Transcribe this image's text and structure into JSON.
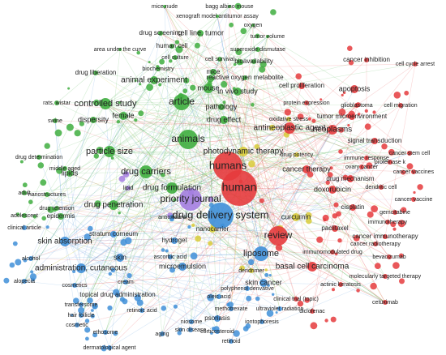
{
  "clusters": [
    {
      "color": "#3fae3f",
      "labels": [
        "mice,nude",
        "bagg albino mouse",
        "xenograft model antitumor assay",
        "oxygen",
        "drug screening",
        "cell line, tumor",
        "tumor volume",
        "area under the curve",
        "human cell",
        "superoxide dismutase",
        "cell culture",
        "cell survival",
        "bioavailability",
        "biochemistry",
        "drug liberation",
        "mice",
        "reactive oxygen metabolite",
        "animal experiment",
        "mouse",
        "in vivo study",
        "rats, wistar",
        "controlled study",
        "article",
        "pathology",
        "female",
        "dispersity",
        "swine",
        "drug effect",
        "animals",
        "particle size",
        "drug determination",
        "middle aged",
        "lipids",
        "drug carriers",
        "adult",
        "nanostructures",
        "drug formulation",
        "adolescent",
        "drug retention",
        "drug penetration",
        "epidermis"
      ]
    },
    {
      "color": "#e53b3d",
      "labels": [
        "cancer inhibition",
        "cell cycle arrest",
        "cell proliferation",
        "apoptosis",
        "protein expression",
        "glioblastoma",
        "cell migration",
        "tumor microenvironment",
        "antineoplastic agent",
        "neoplasms",
        "signal transduction",
        "cancer stem cell",
        "immune response",
        "proteinase k",
        "ovary cancer",
        "cancer vaccines",
        "humans",
        "drug mechanism",
        "dendritic cell",
        "human",
        "doxorubicin",
        "cisplatin",
        "cancer vaccine",
        "gemcitabine",
        "immunotherapy",
        "paclitaxel",
        "cancer immunotherapy",
        "review",
        "cancer radiotherapy",
        "immunomodulated drug",
        "bevacizumab",
        "basal cell carcinoma",
        "molecularly targeted therapy",
        "actinic keratosis",
        "clinical trial (topic)",
        "cetuximab",
        "diclofenac",
        "cancer therapy"
      ]
    },
    {
      "color": "#d8cc3a",
      "labels": [
        "oxidative stress",
        "photodynamic therapy",
        "drug potency",
        "curcumin",
        "nanocarrier",
        "dendrimer"
      ]
    },
    {
      "color": "#a47ee0",
      "labels": [
        "priority journal",
        "lipid"
      ]
    },
    {
      "color": "#3f8fd8",
      "labels": [
        "drug delivery system",
        "antioxidant",
        "stratum corneum",
        "skin absorption",
        "hydrogel",
        "liposome",
        "skin",
        "ascorbic acid",
        "administration, cutaneous",
        "microemulsion",
        "clinical article",
        "alcohol",
        "alopecia",
        "cosmetics",
        "skin cancer",
        "polyphenol derivative",
        "cream",
        "topical drug administration",
        "oleic acid",
        "methotrexate",
        "ultraviolet radiation",
        "transfersome",
        "retinoic acid",
        "niosome",
        "psoriasis",
        "iontophoresis",
        "hair follicle",
        "cosmetic",
        "skin disease",
        "corticosteroid",
        "ethosome",
        "aging",
        "retinoid",
        "dermatological agent"
      ]
    }
  ]
}
